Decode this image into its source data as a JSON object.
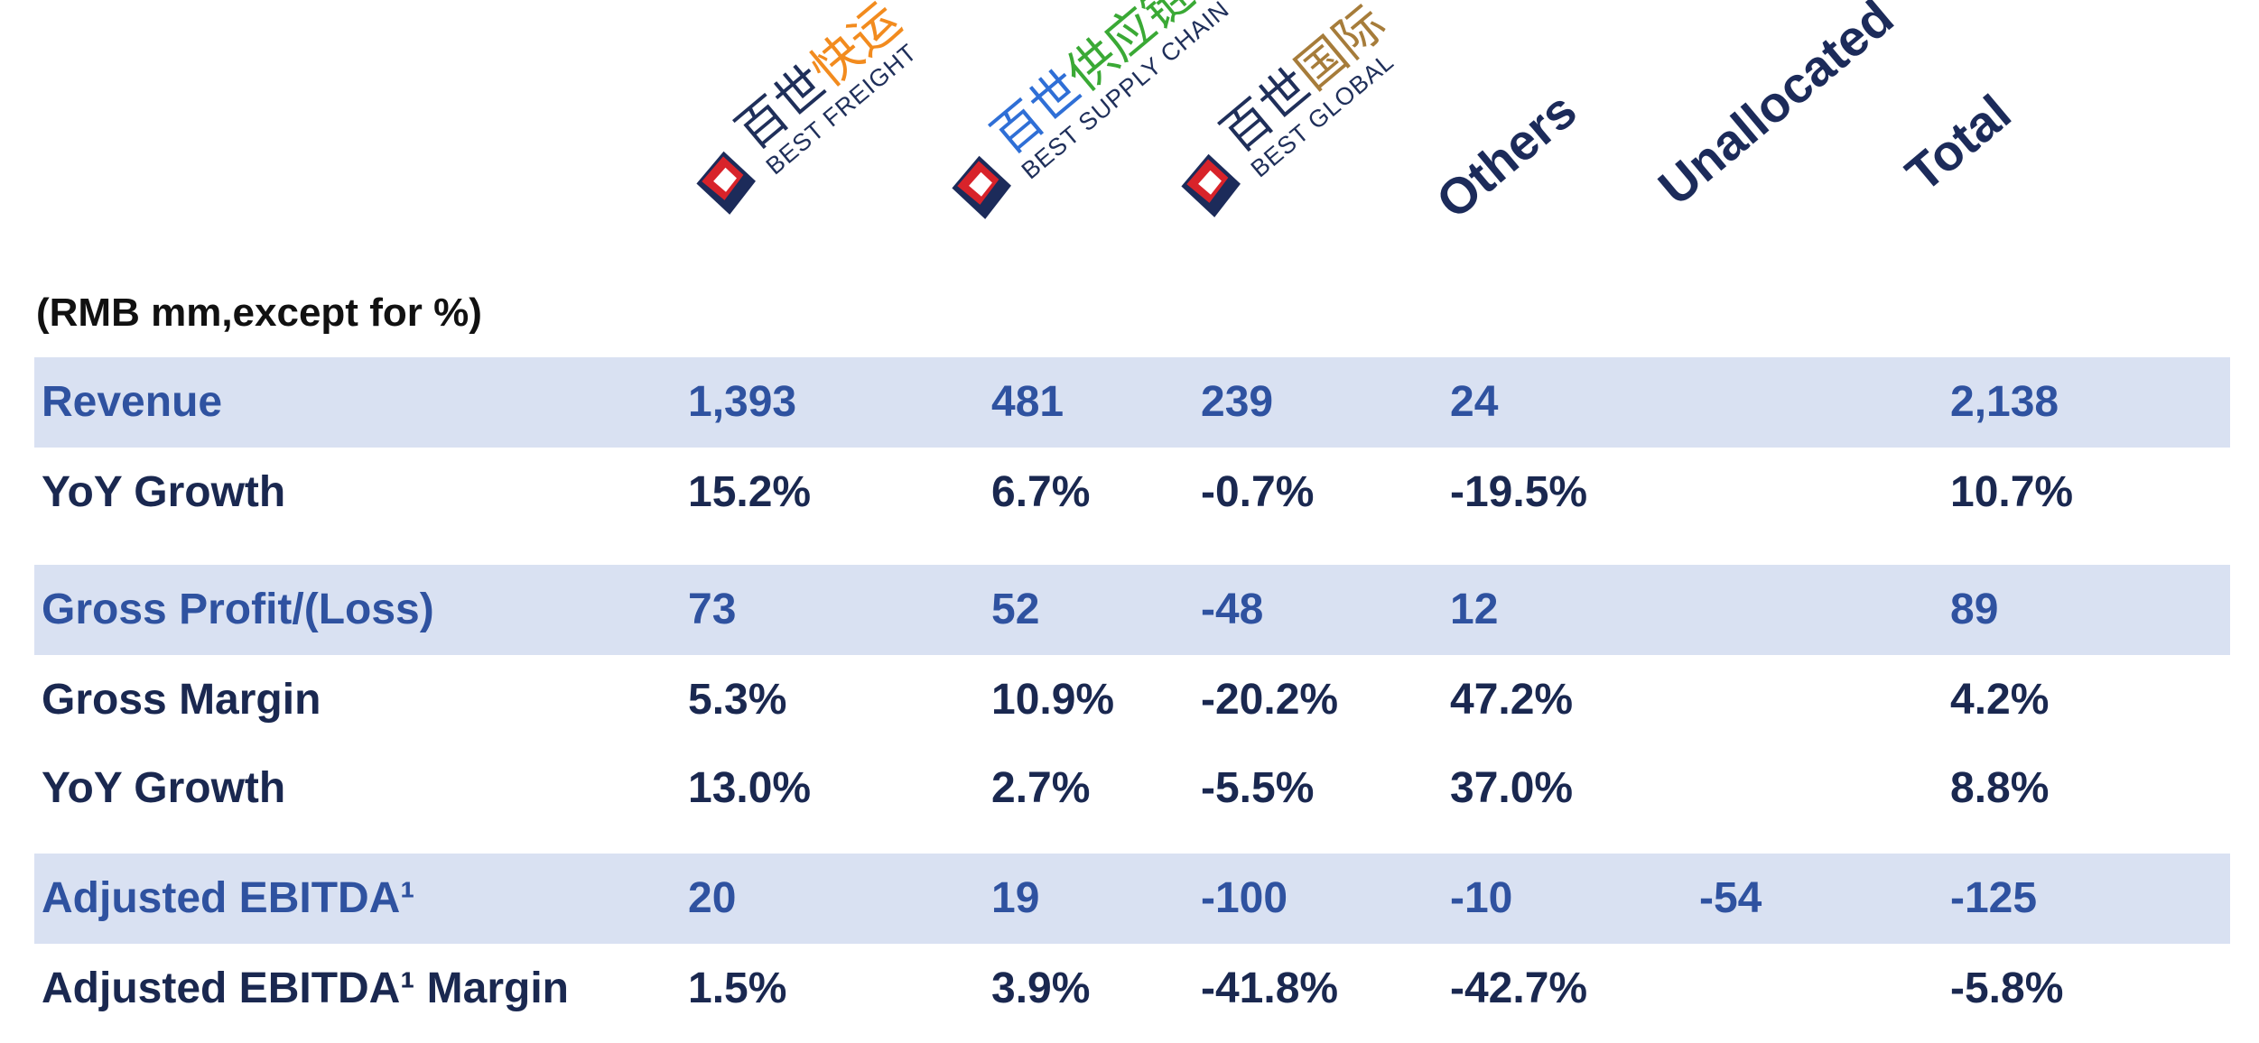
{
  "header": {
    "columns": [
      {
        "kind": "brand",
        "zh_a": "百世",
        "zh_b": "快运",
        "en": "BEST FREIGHT",
        "accent": "#f28b1e"
      },
      {
        "kind": "brand",
        "zh_a": "百世",
        "zh_b": "供应链",
        "en": "BEST SUPPLY CHAIN",
        "accent": "#3aa935",
        "zh_a_color": "#2f6fd6"
      },
      {
        "kind": "brand",
        "zh_a": "百世",
        "zh_b": "国际",
        "en": "BEST GLOBAL",
        "accent": "#a67c3a"
      },
      {
        "kind": "text",
        "label": "Others"
      },
      {
        "kind": "text",
        "label": "Unallocated"
      },
      {
        "kind": "text",
        "label": "Total"
      }
    ],
    "logo_colors": {
      "red": "#d8232a",
      "navy": "#1c2b5a"
    }
  },
  "units": "(RMB mm,except for %)",
  "rows": [
    {
      "label": "Revenue",
      "values": [
        "1,393",
        "481",
        "239",
        "24",
        "",
        "2,138"
      ],
      "style": "head"
    },
    {
      "label": "YoY Growth",
      "values": [
        "15.2%",
        "6.7%",
        "-0.7%",
        "-19.5%",
        "",
        "10.7%"
      ],
      "style": "sub"
    },
    {
      "label": "Gross Profit/(Loss)",
      "values": [
        "73",
        "52",
        "-48",
        "12",
        "",
        "89"
      ],
      "style": "head"
    },
    {
      "label": "Gross Margin",
      "values": [
        "5.3%",
        "10.9%",
        "-20.2%",
        "47.2%",
        "",
        "4.2%"
      ],
      "style": "sub"
    },
    {
      "label": "YoY Growth",
      "values": [
        "13.0%",
        "2.7%",
        "-5.5%",
        "37.0%",
        "",
        "8.8%"
      ],
      "style": "sub"
    },
    {
      "label": "Adjusted EBITDA¹",
      "values": [
        "20",
        "19",
        "-100",
        "-10",
        "-54",
        "-125"
      ],
      "style": "head"
    },
    {
      "label": "Adjusted EBITDA¹ Margin",
      "values": [
        "1.5%",
        "3.9%",
        "-41.8%",
        "-42.7%",
        "",
        "-5.8%"
      ],
      "style": "sub"
    }
  ],
  "colors": {
    "shade": "#d9e1f2",
    "head_text": "#2f52a0",
    "sub_text": "#1a2850"
  }
}
